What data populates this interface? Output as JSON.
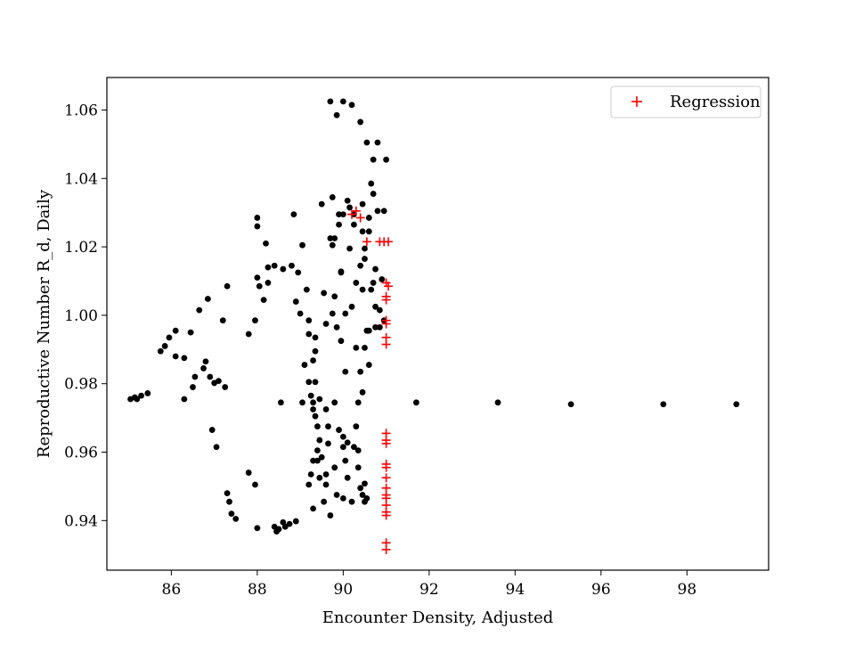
{
  "chart_data": {
    "type": "scatter",
    "title": "",
    "xlabel": "Encounter Density, Adjusted",
    "ylabel": "Reproductive Number R_d, Daily",
    "xlim": [
      84.5,
      99.9
    ],
    "ylim": [
      0.9255,
      1.0695
    ],
    "xticks": [
      86,
      88,
      90,
      92,
      94,
      96,
      98
    ],
    "yticks": [
      0.94,
      0.96,
      0.98,
      1.0,
      1.02,
      1.04,
      1.06
    ],
    "xtick_labels": [
      "86",
      "88",
      "90",
      "92",
      "94",
      "96",
      "98"
    ],
    "ytick_labels": [
      "0.94",
      "0.96",
      "0.98",
      "1.00",
      "1.02",
      "1.04",
      "1.06"
    ],
    "grid": false,
    "legend": {
      "position": "top-right",
      "entries": [
        "Regression"
      ]
    },
    "series": [
      {
        "marker": "circle",
        "color": "#000000",
        "points": [
          [
            85.05,
            0.9755
          ],
          [
            85.15,
            0.976
          ],
          [
            85.2,
            0.9755
          ],
          [
            85.3,
            0.9765
          ],
          [
            85.45,
            0.9772
          ],
          [
            85.75,
            0.9895
          ],
          [
            85.85,
            0.991
          ],
          [
            85.95,
            0.9935
          ],
          [
            86.1,
            0.988
          ],
          [
            86.1,
            0.9955
          ],
          [
            86.3,
            0.9755
          ],
          [
            86.3,
            0.9875
          ],
          [
            86.45,
            0.995
          ],
          [
            86.5,
            0.979
          ],
          [
            86.55,
            0.982
          ],
          [
            86.65,
            1.0015
          ],
          [
            86.75,
            0.9845
          ],
          [
            86.8,
            0.9865
          ],
          [
            86.85,
            1.0048
          ],
          [
            86.9,
            0.982
          ],
          [
            86.95,
            0.9665
          ],
          [
            87.0,
            0.9802
          ],
          [
            87.05,
            0.9615
          ],
          [
            87.1,
            0.9808
          ],
          [
            87.2,
            0.9985
          ],
          [
            87.25,
            0.979
          ],
          [
            87.3,
            1.0085
          ],
          [
            87.3,
            0.948
          ],
          [
            87.35,
            0.9455
          ],
          [
            87.4,
            0.942
          ],
          [
            87.5,
            0.9405
          ],
          [
            87.8,
            0.954
          ],
          [
            87.95,
            0.9505
          ],
          [
            88.0,
            0.9378
          ],
          [
            88.0,
            1.0285
          ],
          [
            88.0,
            1.026
          ],
          [
            88.0,
            1.011
          ],
          [
            88.05,
            1.0085
          ],
          [
            88.2,
            1.021
          ],
          [
            88.25,
            1.014
          ],
          [
            88.4,
            0.9382
          ],
          [
            88.45,
            0.9368
          ],
          [
            88.5,
            0.9375
          ],
          [
            88.55,
            0.9745
          ],
          [
            88.6,
            0.9395
          ],
          [
            88.65,
            0.9382
          ],
          [
            88.75,
            0.939
          ],
          [
            88.85,
            1.0295
          ],
          [
            88.9,
            1.004
          ],
          [
            88.9,
            0.9398
          ],
          [
            89.05,
            1.0205
          ],
          [
            89.05,
            0.9745
          ],
          [
            89.15,
            1.0075
          ],
          [
            89.2,
            0.9985
          ],
          [
            89.3,
            0.9868
          ],
          [
            89.35,
            0.9935
          ],
          [
            89.35,
            0.9805
          ],
          [
            89.4,
            0.9675
          ],
          [
            89.45,
            0.9635
          ],
          [
            89.5,
            1.0325
          ],
          [
            89.55,
            1.0065
          ],
          [
            89.6,
            0.9975
          ],
          [
            89.65,
            0.9625
          ],
          [
            89.7,
            1.0625
          ],
          [
            89.7,
            1.0225
          ],
          [
            89.75,
            1.0345
          ],
          [
            89.8,
            0.9555
          ],
          [
            89.85,
            1.0585
          ],
          [
            89.9,
            1.0295
          ],
          [
            89.95,
            1.0128
          ],
          [
            90.0,
            1.0625
          ],
          [
            90.0,
            0.9645
          ],
          [
            90.05,
            0.9835
          ],
          [
            90.1,
            1.0335
          ],
          [
            90.1,
            0.9628
          ],
          [
            90.15,
            1.0195
          ],
          [
            90.2,
            1.0615
          ],
          [
            90.25,
            1.0295
          ],
          [
            90.3,
            0.9905
          ],
          [
            90.35,
            0.9605
          ],
          [
            90.4,
            1.0565
          ],
          [
            90.45,
            1.0325
          ],
          [
            90.45,
            1.0075
          ],
          [
            90.5,
            1.0165
          ],
          [
            90.5,
            0.9508
          ],
          [
            90.55,
            1.0505
          ],
          [
            90.6,
            1.0285
          ],
          [
            90.6,
            0.9955
          ],
          [
            90.65,
            1.0385
          ],
          [
            90.7,
            1.0095
          ],
          [
            90.75,
            1.0135
          ],
          [
            90.8,
            1.0305
          ],
          [
            90.85,
            1.0015
          ],
          [
            90.9,
            1.0105
          ],
          [
            90.95,
            0.9985
          ],
          [
            90.95,
            1.0305
          ],
          [
            90.7,
            1.0455
          ],
          [
            90.8,
            1.0505
          ],
          [
            91.0,
            1.0455
          ],
          [
            90.7,
            1.0355
          ],
          [
            90.6,
            1.0245
          ],
          [
            90.75,
            1.0025
          ],
          [
            90.85,
            0.9965
          ],
          [
            90.75,
            0.9965
          ],
          [
            90.65,
            1.0075
          ],
          [
            90.55,
            0.9955
          ],
          [
            90.5,
            0.9905
          ],
          [
            90.6,
            0.9855
          ],
          [
            90.4,
            0.9835
          ],
          [
            90.45,
            0.9775
          ],
          [
            90.35,
            0.9745
          ],
          [
            90.3,
            0.9675
          ],
          [
            90.25,
            0.9615
          ],
          [
            90.35,
            0.9555
          ],
          [
            90.4,
            0.9495
          ],
          [
            90.5,
            0.9455
          ],
          [
            90.45,
            0.9475
          ],
          [
            90.55,
            0.9465
          ],
          [
            90.2,
            0.9455
          ],
          [
            90.0,
            0.9465
          ],
          [
            89.85,
            0.9475
          ],
          [
            89.7,
            0.9415
          ],
          [
            89.55,
            0.9455
          ],
          [
            89.45,
            0.9525
          ],
          [
            89.4,
            0.9575
          ],
          [
            89.3,
            0.9575
          ],
          [
            89.25,
            0.9535
          ],
          [
            89.2,
            0.9505
          ],
          [
            89.3,
            0.9435
          ],
          [
            89.6,
            0.9535
          ],
          [
            89.6,
            0.9505
          ],
          [
            89.5,
            0.9585
          ],
          [
            89.4,
            0.9605
          ],
          [
            89.3,
            0.9725
          ],
          [
            89.35,
            0.9895
          ],
          [
            89.2,
            0.9945
          ],
          [
            89.0,
            1.0005
          ],
          [
            88.95,
            1.0125
          ],
          [
            88.8,
            1.0145
          ],
          [
            88.6,
            1.0135
          ],
          [
            88.4,
            1.0145
          ],
          [
            88.25,
            1.0095
          ],
          [
            88.15,
            1.0045
          ],
          [
            87.95,
            0.9985
          ],
          [
            87.8,
            0.9945
          ],
          [
            89.1,
            0.9855
          ],
          [
            89.2,
            0.9805
          ],
          [
            89.25,
            0.9765
          ],
          [
            89.3,
            0.9745
          ],
          [
            89.35,
            0.9705
          ],
          [
            89.45,
            0.9755
          ],
          [
            89.6,
            0.9725
          ],
          [
            89.65,
            0.9675
          ],
          [
            89.8,
            0.9745
          ],
          [
            89.9,
            0.9665
          ],
          [
            90.0,
            0.9615
          ],
          [
            90.05,
            0.9575
          ],
          [
            90.1,
            0.9525
          ],
          [
            89.95,
            1.0125
          ],
          [
            89.8,
            1.0055
          ],
          [
            89.75,
            1.0005
          ],
          [
            89.85,
            0.9965
          ],
          [
            89.95,
            0.9925
          ],
          [
            90.05,
            1.0005
          ],
          [
            90.2,
            1.0025
          ],
          [
            90.3,
            1.0095
          ],
          [
            90.4,
            1.0145
          ],
          [
            90.5,
            1.0195
          ],
          [
            90.45,
            1.0245
          ],
          [
            90.25,
            1.0265
          ],
          [
            90.15,
            1.0315
          ],
          [
            90.0,
            1.0295
          ],
          [
            89.9,
            1.0265
          ],
          [
            89.8,
            1.0225
          ],
          [
            89.75,
            1.0205
          ],
          [
            91.7,
            0.9745
          ],
          [
            93.6,
            0.9745
          ],
          [
            95.3,
            0.974
          ],
          [
            97.45,
            0.974
          ],
          [
            99.15,
            0.974
          ]
        ]
      },
      {
        "name": "Regression",
        "marker": "plus",
        "color": "#ff0000",
        "points": [
          [
            90.2,
            1.0295
          ],
          [
            90.3,
            1.0305
          ],
          [
            90.4,
            1.0285
          ],
          [
            90.55,
            1.0215
          ],
          [
            90.85,
            1.0215
          ],
          [
            90.95,
            1.0215
          ],
          [
            91.05,
            1.0215
          ],
          [
            91.0,
            1.0095
          ],
          [
            91.05,
            1.0085
          ],
          [
            91.0,
            1.0055
          ],
          [
            91.0,
            1.0045
          ],
          [
            91.0,
            0.9985
          ],
          [
            91.0,
            0.9975
          ],
          [
            91.0,
            0.9935
          ],
          [
            91.0,
            0.9915
          ],
          [
            91.0,
            0.9655
          ],
          [
            91.0,
            0.9635
          ],
          [
            91.0,
            0.9625
          ],
          [
            91.0,
            0.9565
          ],
          [
            91.0,
            0.9555
          ],
          [
            91.0,
            0.9525
          ],
          [
            91.0,
            0.9495
          ],
          [
            91.0,
            0.9475
          ],
          [
            91.0,
            0.9465
          ],
          [
            91.0,
            0.9445
          ],
          [
            91.0,
            0.9425
          ],
          [
            91.0,
            0.9415
          ],
          [
            91.0,
            0.9335
          ],
          [
            91.0,
            0.9315
          ]
        ]
      }
    ]
  }
}
